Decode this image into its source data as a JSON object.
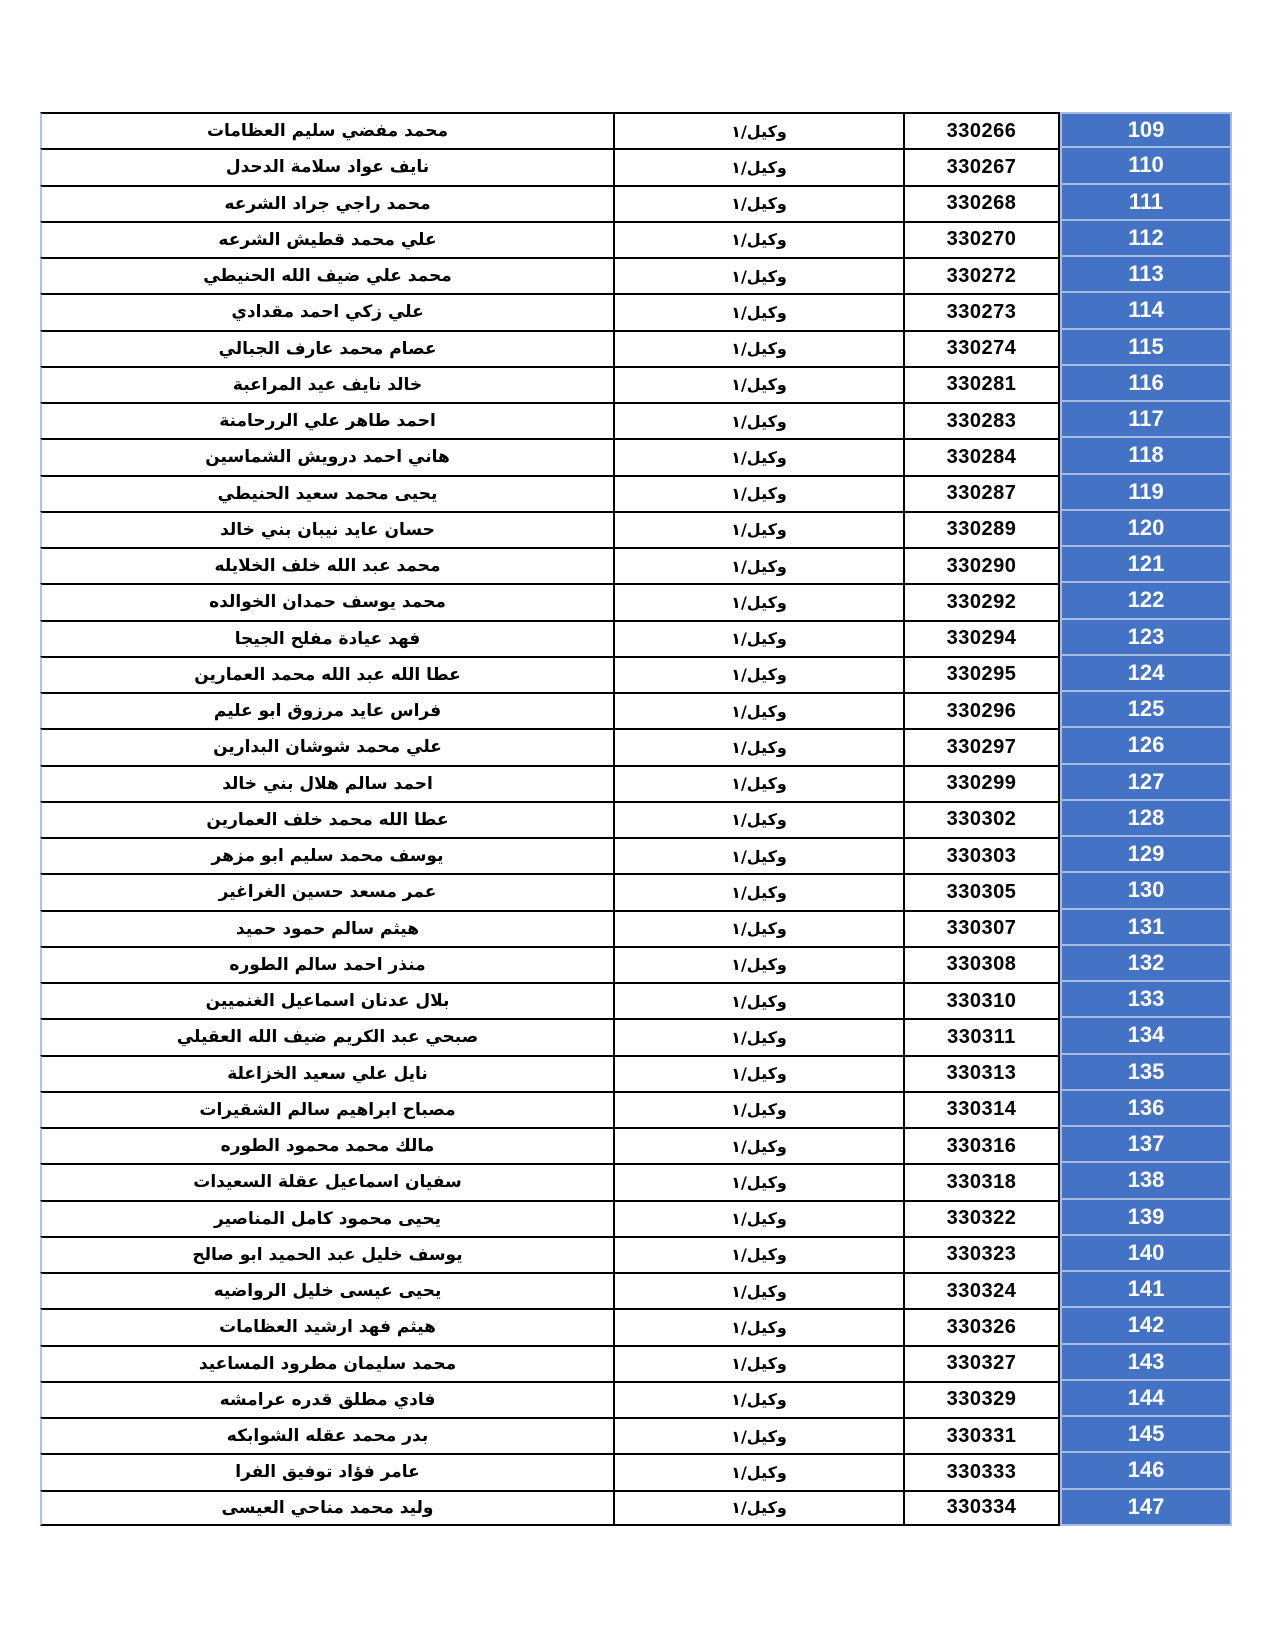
{
  "page": {
    "background": "#ffffff"
  },
  "table": {
    "rank_label": "وكيل/١",
    "colors": {
      "index_fill": "#4472c4",
      "index_border": "#a9bbde",
      "index_text": "#ffffff",
      "grid_line": "#000000",
      "outer_left_line": "#aac3e6",
      "cell_text": "#000000"
    },
    "rows": [
      {
        "index": "109",
        "number": "330266",
        "name": "محمد مفضي سليم العظامات"
      },
      {
        "index": "110",
        "number": "330267",
        "name": "نايف عواد سلامة الدحدل"
      },
      {
        "index": "111",
        "number": "330268",
        "name": "محمد راجي جراد الشرعه"
      },
      {
        "index": "112",
        "number": "330270",
        "name": "علي محمد قطيش الشرعه"
      },
      {
        "index": "113",
        "number": "330272",
        "name": "محمد علي ضيف الله الحنيطي"
      },
      {
        "index": "114",
        "number": "330273",
        "name": "علي زكي احمد مقدادي"
      },
      {
        "index": "115",
        "number": "330274",
        "name": "عصام محمد عارف الجبالي"
      },
      {
        "index": "116",
        "number": "330281",
        "name": "خالد نايف عيد المراعبة"
      },
      {
        "index": "117",
        "number": "330283",
        "name": "احمد طاهر علي الررحامنة"
      },
      {
        "index": "118",
        "number": "330284",
        "name": "هاني احمد درويش الشماسين"
      },
      {
        "index": "119",
        "number": "330287",
        "name": "يحيى محمد سعيد الحنيطي"
      },
      {
        "index": "120",
        "number": "330289",
        "name": "حسان عايد نيبان بني خالد"
      },
      {
        "index": "121",
        "number": "330290",
        "name": "محمد عبد الله خلف الخلايله"
      },
      {
        "index": "122",
        "number": "330292",
        "name": "محمد يوسف حمدان الخوالده"
      },
      {
        "index": "123",
        "number": "330294",
        "name": "فهد عيادة مفلح الجيجا"
      },
      {
        "index": "124",
        "number": "330295",
        "name": "عطا الله عبد الله محمد العمارين"
      },
      {
        "index": "125",
        "number": "330296",
        "name": "فراس عايد مرزوق ابو عليم"
      },
      {
        "index": "126",
        "number": "330297",
        "name": "علي محمد شوشان البدارين"
      },
      {
        "index": "127",
        "number": "330299",
        "name": "احمد سالم هلال بني خالد"
      },
      {
        "index": "128",
        "number": "330302",
        "name": "عطا الله محمد خلف العمارين"
      },
      {
        "index": "129",
        "number": "330303",
        "name": "يوسف محمد سليم ابو مزهر"
      },
      {
        "index": "130",
        "number": "330305",
        "name": "عمر مسعد حسين الغراغير"
      },
      {
        "index": "131",
        "number": "330307",
        "name": "هيثم سالم حمود حميد"
      },
      {
        "index": "132",
        "number": "330308",
        "name": "منذر احمد سالم الطوره"
      },
      {
        "index": "133",
        "number": "330310",
        "name": "بلال عدنان اسماعيل الغنميين"
      },
      {
        "index": "134",
        "number": "330311",
        "name": "صبحي عبد الكريم ضيف الله العقيلي"
      },
      {
        "index": "135",
        "number": "330313",
        "name": "نايل علي سعيد الخزاعلة"
      },
      {
        "index": "136",
        "number": "330314",
        "name": "مصباح ابراهيم سالم الشقيرات"
      },
      {
        "index": "137",
        "number": "330316",
        "name": "مالك محمد محمود الطوره"
      },
      {
        "index": "138",
        "number": "330318",
        "name": "سفيان اسماعيل عقلة السعيدات"
      },
      {
        "index": "139",
        "number": "330322",
        "name": "يحيى محمود كامل المناصير"
      },
      {
        "index": "140",
        "number": "330323",
        "name": "يوسف خليل عبد الحميد ابو صالح"
      },
      {
        "index": "141",
        "number": "330324",
        "name": "يحيى عيسى خليل الرواضيه"
      },
      {
        "index": "142",
        "number": "330326",
        "name": "هيثم فهد ارشيد العظامات"
      },
      {
        "index": "143",
        "number": "330327",
        "name": "محمد سليمان مطرود المساعيد"
      },
      {
        "index": "144",
        "number": "330329",
        "name": "فادي مطلق قدره عرامشه"
      },
      {
        "index": "145",
        "number": "330331",
        "name": "بدر محمد عقله الشوابكه"
      },
      {
        "index": "146",
        "number": "330333",
        "name": "عامر فؤاد توفيق الفرا"
      },
      {
        "index": "147",
        "number": "330334",
        "name": "وليد محمد مناحي العيسى"
      }
    ]
  }
}
